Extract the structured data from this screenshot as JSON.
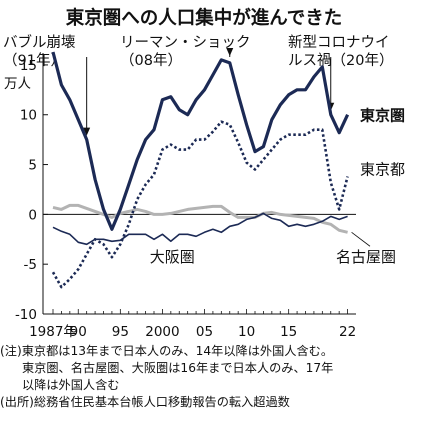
{
  "chart_data": {
    "type": "line",
    "title": "東京圏への人口集中が進んできた",
    "ylabel": "万人",
    "ylim": [
      -10,
      17
    ],
    "yticks": [
      15,
      10,
      5,
      0,
      -5,
      -10
    ],
    "xlim": [
      1987,
      2023
    ],
    "xticks": [
      {
        "x": 1987,
        "label": "1987年"
      },
      {
        "x": 1990,
        "label": "90"
      },
      {
        "x": 1995,
        "label": "95"
      },
      {
        "x": 2000,
        "label": "2000"
      },
      {
        "x": 2005,
        "label": "05"
      },
      {
        "x": 2010,
        "label": "10"
      },
      {
        "x": 2015,
        "label": "15"
      },
      {
        "x": 2022,
        "label": "22"
      }
    ],
    "x": [
      1987,
      1988,
      1989,
      1990,
      1991,
      1992,
      1993,
      1994,
      1995,
      1996,
      1997,
      1998,
      1999,
      2000,
      2001,
      2002,
      2003,
      2004,
      2005,
      2006,
      2007,
      2008,
      2009,
      2010,
      2011,
      2012,
      2013,
      2014,
      2015,
      2016,
      2017,
      2018,
      2019,
      2020,
      2021,
      2022
    ],
    "series": [
      {
        "name": "東京圏",
        "style": "solid-thick",
        "color": "#1c2a55",
        "values": [
          16.3,
          13.0,
          11.5,
          9.5,
          7.5,
          3.5,
          0.5,
          -1.5,
          0.5,
          3.0,
          5.5,
          7.5,
          8.5,
          11.5,
          11.8,
          10.5,
          10.0,
          11.5,
          12.5,
          14.0,
          15.5,
          15.2,
          12.0,
          9.0,
          6.3,
          6.8,
          9.5,
          11.0,
          12.0,
          12.5,
          12.5,
          13.8,
          14.8,
          10.0,
          8.2,
          10.0
        ]
      },
      {
        "name": "東京都",
        "style": "dotted",
        "color": "#1c2a55",
        "values": [
          -5.8,
          -7.3,
          -6.5,
          -5.5,
          -4.0,
          -2.5,
          -3.0,
          -4.3,
          -3.0,
          -1.0,
          1.5,
          3.0,
          4.0,
          6.5,
          7.0,
          6.5,
          6.5,
          7.5,
          7.5,
          8.3,
          9.3,
          9.0,
          7.2,
          5.2,
          4.5,
          5.5,
          6.5,
          7.5,
          8.0,
          8.0,
          8.0,
          8.5,
          8.5,
          3.2,
          0.5,
          3.8
        ]
      },
      {
        "name": "大阪圏",
        "style": "solid-thin",
        "color": "#1c2a55",
        "values": [
          -1.3,
          -1.7,
          -2.0,
          -2.8,
          -3.0,
          -2.5,
          -2.5,
          -2.7,
          -2.6,
          -2.0,
          -2.0,
          -2.0,
          -2.5,
          -2.0,
          -2.7,
          -2.0,
          -2.0,
          -2.2,
          -1.8,
          -1.5,
          -1.8,
          -1.2,
          -1.0,
          -0.5,
          -0.3,
          0.1,
          -0.4,
          -0.6,
          -1.2,
          -1.0,
          -1.2,
          -1.0,
          -0.7,
          -0.2,
          -0.5,
          -0.2
        ]
      },
      {
        "name": "名古屋圏",
        "style": "solid-gray",
        "color": "#b3b3b3",
        "values": [
          0.7,
          0.5,
          0.9,
          0.9,
          0.6,
          0.3,
          0.0,
          -0.3,
          0.1,
          0.3,
          0.5,
          0.3,
          0.0,
          0.0,
          0.1,
          0.3,
          0.5,
          0.6,
          0.7,
          0.8,
          0.8,
          0.2,
          -0.3,
          -0.3,
          -0.3,
          0.1,
          0.2,
          0.0,
          -0.1,
          -0.2,
          -0.3,
          -0.4,
          -0.8,
          -1.0,
          -1.6,
          -1.8
        ]
      }
    ],
    "annotations": [
      {
        "text_lines": [
          "バブル崩壊",
          "（91年）"
        ],
        "x": 1991
      },
      {
        "text_lines": [
          "リーマン・ショック",
          "（08年）"
        ],
        "x": 2008
      },
      {
        "text_lines": [
          "新型コロナウイ",
          "ルス禍（20年）"
        ],
        "x": 2020
      }
    ],
    "grid": false,
    "legend": "inline labels"
  },
  "notes": {
    "line1": "(注)東京都は13年まで日本人のみ、14年以降は外国人含む。",
    "line2": "東京圏、名古屋圏、大阪圏は16年まで日本人のみ、17年",
    "line3": "以降は外国人含む",
    "source": "(出所)総務省住民基本台帳人口移動報告の転入超過数"
  }
}
